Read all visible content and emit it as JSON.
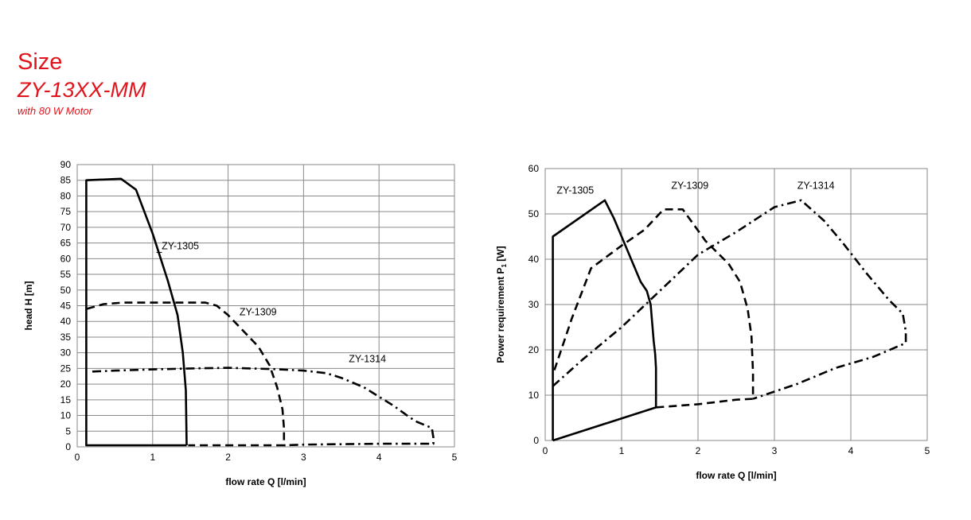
{
  "header": {
    "title": "Size",
    "model": "ZY-13XX-MM",
    "note": "with 80 W Motor"
  },
  "chart_data": [
    {
      "type": "line",
      "xlabel": "flow rate Q [l/min]",
      "ylabel": "head H [m]",
      "xlim": [
        0,
        5
      ],
      "ylim": [
        0,
        90
      ],
      "xticks": [
        0,
        1,
        2,
        3,
        4,
        5
      ],
      "yticks": [
        0,
        5,
        10,
        15,
        20,
        25,
        30,
        35,
        40,
        45,
        50,
        55,
        60,
        65,
        70,
        75,
        80,
        85,
        90
      ],
      "grid": true,
      "series": [
        {
          "name": "ZY-1305",
          "style": "solid",
          "label_at": [
            1.12,
            63
          ],
          "x": [
            1.45,
            0.12,
            0.12,
            0.58,
            0.78,
            1.0,
            1.2,
            1.33,
            1.4,
            1.44,
            1.45
          ],
          "y": [
            0.5,
            0.5,
            85,
            85.5,
            82,
            68,
            53,
            42,
            30,
            18,
            0.5
          ]
        },
        {
          "name": "ZY-1309",
          "style": "dash",
          "label_at": [
            2.15,
            42
          ],
          "x": [
            0.13,
            0.35,
            0.6,
            0.9,
            1.2,
            1.5,
            1.7,
            1.85,
            2.0,
            2.2,
            2.4,
            2.55,
            2.65,
            2.72,
            2.74,
            2.74,
            2.0,
            1.47
          ],
          "y": [
            44,
            45.5,
            46,
            46,
            46,
            46,
            46,
            45,
            42,
            37,
            32,
            26,
            19,
            12,
            6,
            0.5,
            0.5,
            0.5
          ]
        },
        {
          "name": "ZY-1314",
          "style": "dashdot",
          "label_at": [
            3.6,
            27
          ],
          "x": [
            0.2,
            0.5,
            1.0,
            1.5,
            2.0,
            2.6,
            3.0,
            3.3,
            3.5,
            3.8,
            4.0,
            4.2,
            4.4,
            4.5,
            4.7,
            4.72,
            4.72,
            4.0,
            3.0,
            2.74
          ],
          "y": [
            24,
            24.3,
            24.7,
            25,
            25.2,
            24.8,
            24.3,
            23.5,
            22,
            19,
            16,
            13,
            9.5,
            8,
            6,
            3,
            1,
            1,
            0.7,
            0.5
          ]
        }
      ]
    },
    {
      "type": "line",
      "xlabel": "flow rate Q [l/min]",
      "ylabel": "Power requirement P",
      "ylabel_sub": "1",
      "ylabel_unit": " [W]",
      "xlim": [
        0,
        5
      ],
      "ylim": [
        0,
        60
      ],
      "xticks": [
        0,
        1,
        2,
        3,
        4,
        5
      ],
      "yticks": [
        0,
        10,
        20,
        30,
        40,
        50,
        60
      ],
      "grid": true,
      "series": [
        {
          "name": "ZY-1305",
          "style": "solid",
          "label_at": [
            0.15,
            54.5
          ],
          "x": [
            0.1,
            0.1,
            0.78,
            0.9,
            1.05,
            1.15,
            1.25,
            1.33,
            1.38,
            1.4,
            1.42,
            1.44,
            1.45,
            1.45,
            0.1
          ],
          "y": [
            0,
            45,
            53,
            49,
            43,
            39,
            35,
            33,
            30,
            26,
            22,
            19,
            16,
            7.3,
            0
          ]
        },
        {
          "name": "ZY-1309",
          "style": "dash",
          "label_at": [
            1.65,
            55.5
          ],
          "x": [
            0.12,
            0.35,
            0.6,
            1.0,
            1.3,
            1.55,
            1.8,
            2.1,
            2.4,
            2.55,
            2.65,
            2.7,
            2.72,
            2.72,
            2.5,
            2.0,
            1.45
          ],
          "y": [
            15.5,
            27,
            38,
            43,
            46.5,
            51,
            51,
            44,
            39,
            35,
            29,
            23,
            15,
            9.2,
            9,
            8,
            7.3
          ]
        },
        {
          "name": "ZY-1314",
          "style": "dashdot",
          "label_at": [
            3.3,
            55.5
          ],
          "x": [
            0.1,
            0.5,
            1.0,
            1.5,
            2.0,
            2.5,
            3.0,
            3.35,
            3.65,
            3.9,
            4.2,
            4.5,
            4.68,
            4.72,
            4.72,
            4.3,
            3.8,
            3.3,
            2.72
          ],
          "y": [
            12,
            18,
            25,
            33,
            41,
            46,
            51.5,
            53,
            48.5,
            43.5,
            37,
            31,
            28,
            24,
            21.5,
            18.5,
            16,
            12.5,
            9.2
          ]
        }
      ]
    }
  ]
}
